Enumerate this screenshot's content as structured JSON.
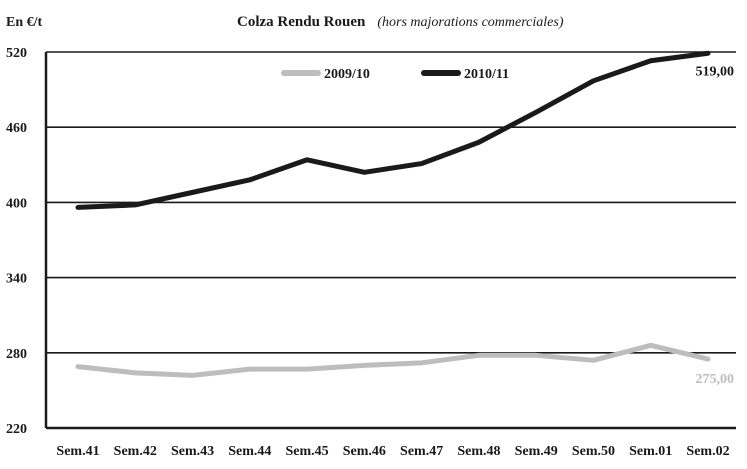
{
  "chart_data": {
    "type": "line",
    "title": "Colza Rendu Rouen",
    "subtitle": "(hors majorations commerciales)",
    "ylabel": "En €/t",
    "xlabel": "",
    "categories": [
      "Sem.41",
      "Sem.42",
      "Sem.43",
      "Sem.44",
      "Sem.45",
      "Sem.46",
      "Sem.47",
      "Sem.48",
      "Sem.49",
      "Sem.50",
      "Sem.01",
      "Sem.02"
    ],
    "ylim": [
      220,
      520
    ],
    "yticks": [
      220,
      280,
      340,
      400,
      460,
      520
    ],
    "grid": true,
    "legend_position": "top-right",
    "series": [
      {
        "name": "2009/10",
        "color": "#bdbdbd",
        "values": [
          269,
          264,
          262,
          267,
          267,
          270,
          272,
          278,
          278,
          274,
          286,
          275
        ],
        "end_label": "275,00"
      },
      {
        "name": "2010/11",
        "color": "#1a1a1a",
        "values": [
          396,
          398,
          408,
          418,
          434,
          424,
          431,
          448,
          472,
          497,
          513,
          519
        ],
        "end_label": "519,00"
      }
    ]
  }
}
